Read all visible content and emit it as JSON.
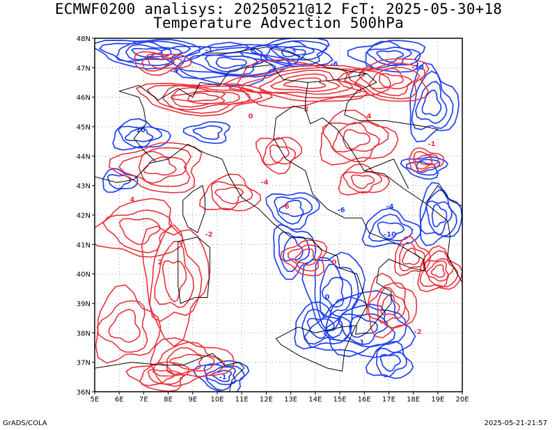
{
  "header": {
    "line1": "ECMWF0200 analisys: 20250521@12 FcT: 2025-05-30+18",
    "line2": "Temperature Advection 500hPa"
  },
  "footer": {
    "left": "GrADS/COLA",
    "right": "2025-05-21-21:57"
  },
  "map": {
    "lon_range": [
      5,
      20
    ],
    "lat_range": [
      36,
      48
    ],
    "lon_ticks": [
      "5E",
      "6E",
      "7E",
      "8E",
      "9E",
      "10E",
      "11E",
      "12E",
      "13E",
      "14E",
      "15E",
      "16E",
      "17E",
      "18E",
      "19E",
      "20E"
    ],
    "lat_ticks": [
      "36N",
      "37N",
      "38N",
      "39N",
      "40N",
      "41N",
      "42N",
      "43N",
      "44N",
      "45N",
      "46N",
      "47N",
      "48N"
    ],
    "grid": "dotted",
    "colors": {
      "warm_advection": "#e8303a",
      "cold_advection": "#2040f0",
      "coastline": "#000000"
    },
    "contour_labels": [
      "-1",
      "-2",
      "-4",
      "-6",
      "-10",
      "0",
      "1",
      "2",
      "4"
    ]
  }
}
